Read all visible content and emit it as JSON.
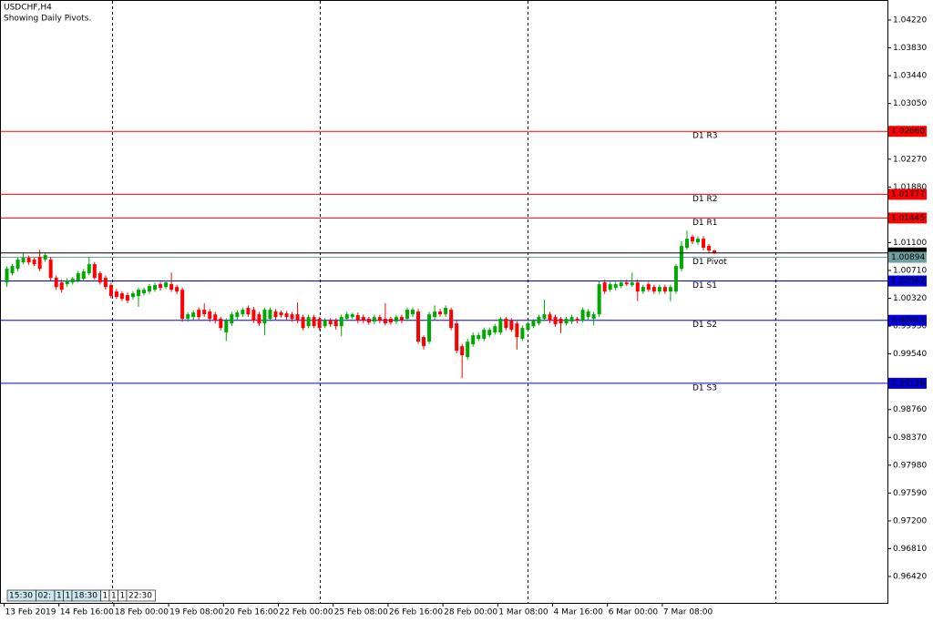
{
  "chart_data": {
    "type": "candlestick",
    "title": "USDCHF,H4",
    "subtitle": "Showing Daily Pivots.",
    "ylim": [
      0.9605,
      1.04501
    ],
    "yticks": [
      {
        "value": 1.0422,
        "label": "1.04220"
      },
      {
        "value": 1.0383,
        "label": "1.03830"
      },
      {
        "value": 1.0344,
        "label": "1.03440"
      },
      {
        "value": 1.0305,
        "label": "1.03050"
      },
      {
        "value": 1.0227,
        "label": "1.02270"
      },
      {
        "value": 1.0188,
        "label": "1.01880"
      },
      {
        "value": 1.011,
        "label": "1.01100"
      },
      {
        "value": 1.0071,
        "label": "1.00710"
      },
      {
        "value": 1.0032,
        "label": "1.00320"
      },
      {
        "value": 0.9993,
        "label": "0.99930"
      },
      {
        "value": 0.9954,
        "label": "0.99540"
      },
      {
        "value": 0.9876,
        "label": "0.98760"
      },
      {
        "value": 0.9837,
        "label": "0.98370"
      },
      {
        "value": 0.9798,
        "label": "0.97980"
      },
      {
        "value": 0.9759,
        "label": "0.97590"
      },
      {
        "value": 0.972,
        "label": "0.97200"
      },
      {
        "value": 0.9681,
        "label": "0.96810"
      },
      {
        "value": 0.9642,
        "label": "0.96420"
      }
    ],
    "up_color": "#00a800",
    "down_color": "#ff0000",
    "current_price": {
      "value": 1.00955,
      "label": "1.00955"
    },
    "pivots": [
      {
        "name": "D1 R3",
        "value": 1.0266,
        "label": "1.02660",
        "color": "#ff0000"
      },
      {
        "name": "D1 R2",
        "value": 1.01777,
        "label": "1.01777",
        "color": "#ff0000"
      },
      {
        "name": "D1 R1",
        "value": 1.01445,
        "label": "1.01445",
        "color": "#ff0000"
      },
      {
        "name": "D1 Pivot",
        "value": 1.00894,
        "label": "1.00894",
        "color": "#6f9f9f"
      },
      {
        "name": "D1 S1",
        "value": 1.00562,
        "label": "1.00562",
        "color": "#0000dd"
      },
      {
        "name": "D1 S2",
        "value": 1.00011,
        "label": "1.00011",
        "color": "#0000dd"
      },
      {
        "name": "D1 S3",
        "value": 0.99128,
        "label": "0.99128",
        "color": "#0000dd"
      }
    ],
    "timebar": [
      "15:30",
      "02:",
      "1",
      "1",
      "18:30",
      "1",
      "1",
      "1",
      "22:30"
    ],
    "categories": [
      "13 Feb 2019",
      null,
      null,
      null,
      null,
      null,
      null,
      null,
      null,
      null,
      "14 Feb 16:00",
      null,
      null,
      null,
      null,
      null,
      null,
      null,
      null,
      null,
      "18 Feb 00:00",
      null,
      null,
      null,
      null,
      null,
      null,
      null,
      null,
      null,
      "19 Feb 08:00",
      null,
      null,
      null,
      null,
      null,
      null,
      null,
      null,
      null,
      "20 Feb 16:00",
      null,
      null,
      null,
      null,
      null,
      null,
      null,
      null,
      null,
      "22 Feb 00:00",
      null,
      null,
      null,
      null,
      null,
      null,
      null,
      null,
      null,
      "25 Feb 08:00",
      null,
      null,
      null,
      null,
      null,
      null,
      null,
      null,
      null,
      "26 Feb 16:00",
      null,
      null,
      null,
      null,
      null,
      null,
      null,
      null,
      null,
      "28 Feb 00:00",
      null,
      null,
      null,
      null,
      null,
      null,
      null,
      null,
      null,
      "1 Mar 08:00",
      null,
      null,
      null,
      null,
      null,
      null,
      null,
      null,
      null,
      "4 Mar 16:00",
      null,
      null,
      null,
      null,
      null,
      null,
      null,
      null,
      null,
      "6 Mar 00:00",
      null,
      null,
      null,
      null,
      null,
      null,
      null,
      null,
      null,
      "7 Mar 08:00",
      null,
      null,
      null,
      null,
      null,
      null,
      null,
      null,
      null
    ],
    "ohlc": [
      [
        1.00542,
        1.00765,
        1.0048,
        1.00734
      ],
      [
        1.0067,
        1.008,
        1.0064,
        1.00772
      ],
      [
        1.00734,
        1.0089,
        1.007,
        1.00862
      ],
      [
        1.00823,
        1.0095,
        1.008,
        1.00887
      ],
      [
        1.00887,
        1.0092,
        1.0079,
        1.00823
      ],
      [
        1.00862,
        1.0089,
        1.0077,
        1.00798
      ],
      [
        1.009,
        1.01,
        1.007,
        1.00734
      ],
      [
        1.00862,
        1.0095,
        1.0083,
        1.00925
      ],
      [
        1.00862,
        1.009,
        1.0057,
        1.00606
      ],
      [
        1.00606,
        1.0064,
        1.0044,
        1.00478
      ],
      [
        1.00542,
        1.0058,
        1.004,
        1.0044
      ],
      [
        1.00517,
        1.006,
        1.0048,
        1.00568
      ],
      [
        1.00542,
        1.0062,
        1.0051,
        1.00593
      ],
      [
        1.00568,
        1.007,
        1.0054,
        1.0067
      ],
      [
        1.00593,
        1.0073,
        1.0056,
        1.00696
      ],
      [
        1.0067,
        1.009,
        1.0064,
        1.00798
      ],
      [
        1.00798,
        1.0083,
        1.0058,
        1.00606
      ],
      [
        1.0067,
        1.007,
        1.0051,
        1.00542
      ],
      [
        1.00606,
        1.0064,
        1.0044,
        1.00478
      ],
      [
        1.00504,
        1.0054,
        1.0032,
        1.00351
      ],
      [
        1.00415,
        1.0045,
        1.0031,
        1.00338
      ],
      [
        1.00389,
        1.0042,
        1.0028,
        1.00312
      ],
      [
        1.00364,
        1.004,
        1.0025,
        1.00287
      ],
      [
        1.00338,
        1.0042,
        1.003,
        1.00389
      ],
      [
        1.00351,
        1.0047,
        1.002,
        1.0044
      ],
      [
        1.00389,
        1.0047,
        1.0036,
        1.0044
      ],
      [
        1.00415,
        1.0052,
        1.0038,
        1.00491
      ],
      [
        1.0044,
        1.0054,
        1.0041,
        1.00504
      ],
      [
        1.00517,
        1.0055,
        1.0043,
        1.00466
      ],
      [
        1.00478,
        1.0057,
        1.0045,
        1.00542
      ],
      [
        1.00517,
        1.0068,
        1.0041,
        1.0044
      ],
      [
        1.00478,
        1.0051,
        1.0038,
        1.00415
      ],
      [
        1.0044,
        1.0047,
        0.9999,
        1.00032
      ],
      [
        1.00032,
        1.0012,
        0.9999,
        1.00095
      ],
      [
        1.00057,
        1.0015,
        1.0002,
        1.00121
      ],
      [
        1.00159,
        1.0019,
        1.0002,
        1.00057
      ],
      [
        1.00159,
        1.0025,
        1.0006,
        1.00095
      ],
      [
        1.00134,
        1.0017,
        0.9999,
        1.00032
      ],
      [
        1.00095,
        1.0013,
        0.9997,
        1.00006
      ],
      [
        1.00032,
        1.0006,
        0.9987,
        0.99904
      ],
      [
        0.9984,
        1.0004,
        0.9972,
        1.00006
      ],
      [
        0.99968,
        1.0013,
        0.9993,
        1.00095
      ],
      [
        1.00057,
        1.0015,
        1.0002,
        1.00121
      ],
      [
        1.00095,
        1.0019,
        1.0006,
        1.00159
      ],
      [
        1.00185,
        1.0022,
        1.0006,
        1.00095
      ],
      [
        1.00159,
        1.002,
        0.9997,
        1.00006
      ],
      [
        1.00095,
        1.0013,
        0.9993,
        0.99968
      ],
      [
        0.99968,
        1.0019,
        0.998,
        1.00159
      ],
      [
        1.00032,
        1.0019,
        1.0,
        1.00159
      ],
      [
        1.00134,
        1.0017,
        1.0002,
        1.00057
      ],
      [
        1.00121,
        1.0015,
        1.0005,
        1.00083
      ],
      [
        1.00108,
        1.0014,
        1.0002,
        1.00057
      ],
      [
        1.00095,
        1.0013,
        0.9999,
        1.00032
      ],
      [
        1.00095,
        1.0026,
        0.9997,
        1.00006
      ],
      [
        1.00057,
        1.0009,
        0.9987,
        0.99904
      ],
      [
        0.99929,
        1.0009,
        0.999,
        1.00057
      ],
      [
        1.00057,
        1.0009,
        0.999,
        0.99929
      ],
      [
        1.00032,
        1.0006,
        0.9987,
        0.99904
      ],
      [
        0.99929,
        1.0004,
        0.999,
        1.00006
      ],
      [
        1.00006,
        1.0004,
        0.9992,
        0.99955
      ],
      [
        1.00006,
        1.0004,
        0.9988,
        0.99929
      ],
      [
        0.99929,
        1.0009,
        0.9979,
        1.00057
      ],
      [
        1.00032,
        1.0013,
        1.0,
        1.00095
      ],
      [
        1.00057,
        1.0012,
        1.0003,
        1.00095
      ],
      [
        1.00083,
        1.0012,
        0.9997,
        1.00006
      ],
      [
        1.00057,
        1.0009,
        0.9997,
        1.00006
      ],
      [
        1.00032,
        1.0006,
        0.9995,
        0.9998
      ],
      [
        0.99993,
        1.0009,
        0.9996,
        1.00057
      ],
      [
        1.00057,
        1.0009,
        0.9997,
        1.00006
      ],
      [
        1.00032,
        1.0025,
        0.9994,
        0.99968
      ],
      [
        1.00032,
        1.0006,
        0.9995,
        0.9998
      ],
      [
        0.99993,
        1.0009,
        0.9996,
        1.00057
      ],
      [
        1.00057,
        1.0009,
        0.9997,
        1.00006
      ],
      [
        1.00032,
        1.0019,
        1.0,
        1.00159
      ],
      [
        1.00095,
        1.0019,
        1.0006,
        1.00159
      ],
      [
        1.00134,
        1.0017,
        0.9968,
        0.99712
      ],
      [
        0.99776,
        0.998,
        0.996,
        0.99648
      ],
      [
        0.99712,
        1.0013,
        0.9968,
        1.00095
      ],
      [
        1.00057,
        1.0022,
        1.0002,
        1.00134
      ],
      [
        1.00134,
        1.0017,
        1.0006,
        1.00095
      ],
      [
        1.00095,
        1.0022,
        1.0006,
        1.00185
      ],
      [
        1.00159,
        1.0019,
        0.9987,
        0.99904
      ],
      [
        0.99968,
        1.0,
        0.9955,
        0.99585
      ],
      [
        0.99648,
        0.9968,
        0.992,
        0.99521
      ],
      [
        0.99495,
        0.9975,
        0.9946,
        0.99712
      ],
      [
        0.99674,
        0.9984,
        0.9964,
        0.99802
      ],
      [
        0.99751,
        0.9984,
        0.9972,
        0.99802
      ],
      [
        0.99751,
        0.9991,
        0.9972,
        0.99878
      ],
      [
        0.99802,
        0.9991,
        0.9977,
        0.99878
      ],
      [
        0.9984,
        0.9996,
        0.9981,
        0.99929
      ],
      [
        0.9984,
        1.0006,
        0.9981,
        1.00032
      ],
      [
        1.00032,
        1.0006,
        0.9987,
        0.99904
      ],
      [
        1.00006,
        1.0004,
        0.9985,
        0.99878
      ],
      [
        0.99968,
        1.0,
        0.996,
        0.99776
      ],
      [
        0.99751,
        0.9994,
        0.9972,
        0.99904
      ],
      [
        0.99878,
        0.9999,
        0.9985,
        0.99968
      ],
      [
        0.99929,
        1.0003,
        0.999,
        1.00006
      ],
      [
        0.99968,
        1.0009,
        0.9994,
        1.00057
      ],
      [
        1.00032,
        1.003,
        1.0,
        1.00095
      ],
      [
        1.00095,
        1.0013,
        0.9997,
        1.00006
      ],
      [
        1.00057,
        1.0009,
        0.9992,
        0.99955
      ],
      [
        1.00032,
        1.0006,
        0.9983,
        0.99968
      ],
      [
        0.99968,
        1.0006,
        0.9994,
        1.00032
      ],
      [
        0.99993,
        1.0009,
        0.9996,
        1.00057
      ],
      [
        1.00032,
        1.0006,
        0.9997,
        1.00006
      ],
      [
        1.00006,
        1.0019,
        0.9998,
        1.00159
      ],
      [
        1.00057,
        1.0017,
        1.0002,
        1.00134
      ],
      [
        1.00032,
        1.0013,
        0.9994,
        1.00095
      ],
      [
        1.00095,
        1.0056,
        1.0006,
        1.00517
      ],
      [
        1.00542,
        1.0058,
        1.0038,
        1.00415
      ],
      [
        1.0044,
        1.0055,
        1.0041,
        1.00517
      ],
      [
        1.00466,
        1.0055,
        1.0043,
        1.00517
      ],
      [
        1.00491,
        1.0058,
        1.0046,
        1.00542
      ],
      [
        1.00542,
        1.0058,
        1.0049,
        1.00517
      ],
      [
        1.00504,
        1.0068,
        1.0048,
        1.00542
      ],
      [
        1.00542,
        1.0058,
        1.0028,
        1.00415
      ],
      [
        1.00415,
        1.0051,
        1.0038,
        1.00478
      ],
      [
        1.00517,
        1.0055,
        1.0041,
        1.0044
      ],
      [
        1.00478,
        1.0051,
        1.0038,
        1.00415
      ],
      [
        1.00415,
        1.0051,
        1.0038,
        1.00478
      ],
      [
        1.00478,
        1.0051,
        1.0038,
        1.00415
      ],
      [
        1.00415,
        1.0051,
        1.0028,
        1.00478
      ],
      [
        1.00415,
        1.008,
        1.0038,
        1.00772
      ],
      [
        1.00734,
        1.0112,
        1.007,
        1.01053
      ],
      [
        1.01028,
        1.0127,
        1.01,
        1.01155
      ],
      [
        1.01181,
        1.0121,
        1.0108,
        1.01117
      ],
      [
        1.01104,
        1.0119,
        1.0107,
        1.01155
      ],
      [
        1.01155,
        1.0119,
        1.0099,
        1.01028
      ],
      [
        1.01053,
        1.0108,
        1.0096,
        1.00989
      ],
      [
        1.00989,
        1.01,
        1.0094,
        1.00955
      ]
    ]
  }
}
